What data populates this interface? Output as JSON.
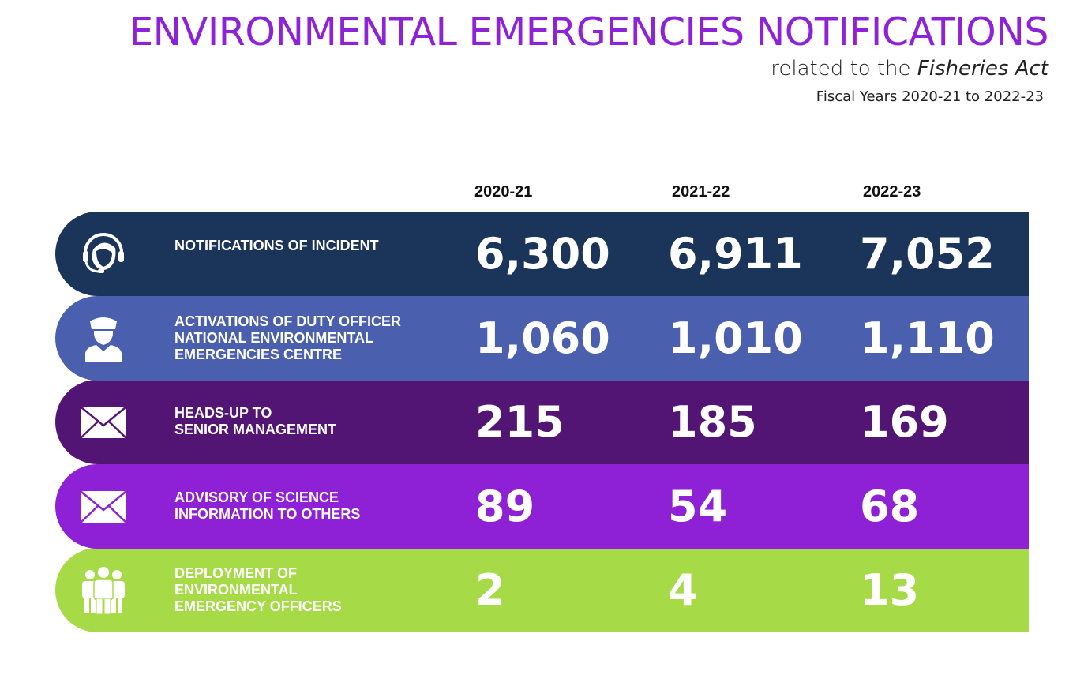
{
  "header": {
    "title": "ENVIRONMENTAL EMERGENCIES NOTIFICATIONS",
    "subtitle_prefix": "related to the ",
    "subtitle_italic": "Fisheries Act",
    "fiscal": "Fiscal Years 2020-21 to 2022-23"
  },
  "chart_data": {
    "type": "table",
    "title": "ENVIRONMENTAL EMERGENCIES NOTIFICATIONS related to the Fisheries Act",
    "columns": [
      "2020-21",
      "2021-22",
      "2022-23"
    ],
    "rows": [
      {
        "label_lines": [
          "NOTIFICATIONS OF INCIDENT"
        ],
        "icon": "headset-agent-icon",
        "color": "#1b3459",
        "values": [
          "6,300",
          "6,911",
          "7,052"
        ]
      },
      {
        "label_lines": [
          "ACTIVATIONS OF DUTY OFFICER",
          "NATIONAL ENVIRONMENTAL",
          "EMERGENCIES CENTRE"
        ],
        "icon": "officer-icon",
        "color": "#4a5fad",
        "values": [
          "1,060",
          "1,010",
          "1,110"
        ]
      },
      {
        "label_lines": [
          "HEADS-UP TO",
          "SENIOR MANAGEMENT"
        ],
        "icon": "envelope-icon",
        "color": "#531574",
        "values": [
          "215",
          "185",
          "169"
        ]
      },
      {
        "label_lines": [
          "ADVISORY OF SCIENCE",
          "INFORMATION TO OTHERS"
        ],
        "icon": "envelope-icon",
        "color": "#8e20d6",
        "values": [
          "89",
          "54",
          "68"
        ]
      },
      {
        "label_lines": [
          "DEPLOYMENT OF",
          "ENVIRONMENTAL",
          "EMERGENCY OFFICERS"
        ],
        "icon": "group-icon",
        "color": "#a6da46",
        "values": [
          "2",
          "4",
          "13"
        ]
      }
    ]
  }
}
